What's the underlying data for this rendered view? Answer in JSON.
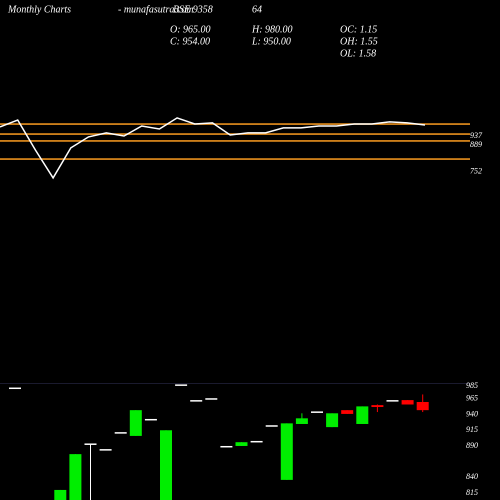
{
  "chart_data": [
    {
      "type": "line",
      "title": "Monthly Charts",
      "subtitle": "- munafasutra.com",
      "symbol": "BSE 9358",
      "annotation": "64",
      "stats": [
        "O: 965.00",
        "H: 980.00",
        "OC: 1.15",
        "C: 954.00",
        "L: 950.00",
        "OH: 1.55",
        "OL: 1.58"
      ],
      "values": [
        984,
        1020,
        864,
        719,
        875,
        932,
        953,
        937,
        989,
        973,
        1031,
        999,
        1005,
        942,
        953,
        953,
        979,
        979,
        989,
        989,
        999,
        999,
        1010,
        1005,
        994
      ],
      "color": "#ffffff",
      "ylim": [
        656,
        1124
      ],
      "levels": [
        999,
        947,
        911,
        817
      ],
      "level_color": "#e8901e",
      "level_labels": [
        937,
        889,
        752
      ]
    },
    {
      "type": "candlestick",
      "open": [
        983,
        null,
        null,
        804,
        804,
        894,
        885,
        912,
        906,
        933,
        804,
        988,
        963,
        966,
        890,
        890,
        898,
        923,
        836,
        925,
        945,
        920,
        947,
        925,
        955,
        963,
        963,
        960
      ],
      "high": [
        983,
        null,
        null,
        820,
        877,
        894,
        885,
        912,
        947,
        933,
        915,
        988,
        963,
        966,
        890,
        896,
        898,
        923,
        926,
        942,
        945,
        942,
        947,
        953,
        956,
        963,
        963,
        972
      ],
      "low": [
        983,
        null,
        null,
        804,
        804,
        804,
        885,
        912,
        906,
        933,
        804,
        988,
        963,
        966,
        890,
        890,
        898,
        923,
        836,
        925,
        945,
        920,
        941,
        925,
        944,
        963,
        956,
        944
      ],
      "close": [
        983,
        null,
        null,
        820,
        877,
        894,
        885,
        912,
        947,
        933,
        915,
        988,
        963,
        966,
        890,
        896,
        898,
        923,
        926,
        934,
        945,
        942,
        941,
        953,
        952,
        963,
        956,
        947
      ],
      "up_color": "#00ee00",
      "down_color": "#ff0000",
      "flat_color": "#ffffff",
      "ylim": [
        804,
        995
      ],
      "yticks": [
        985,
        965,
        940,
        915,
        890,
        840,
        815
      ]
    }
  ]
}
